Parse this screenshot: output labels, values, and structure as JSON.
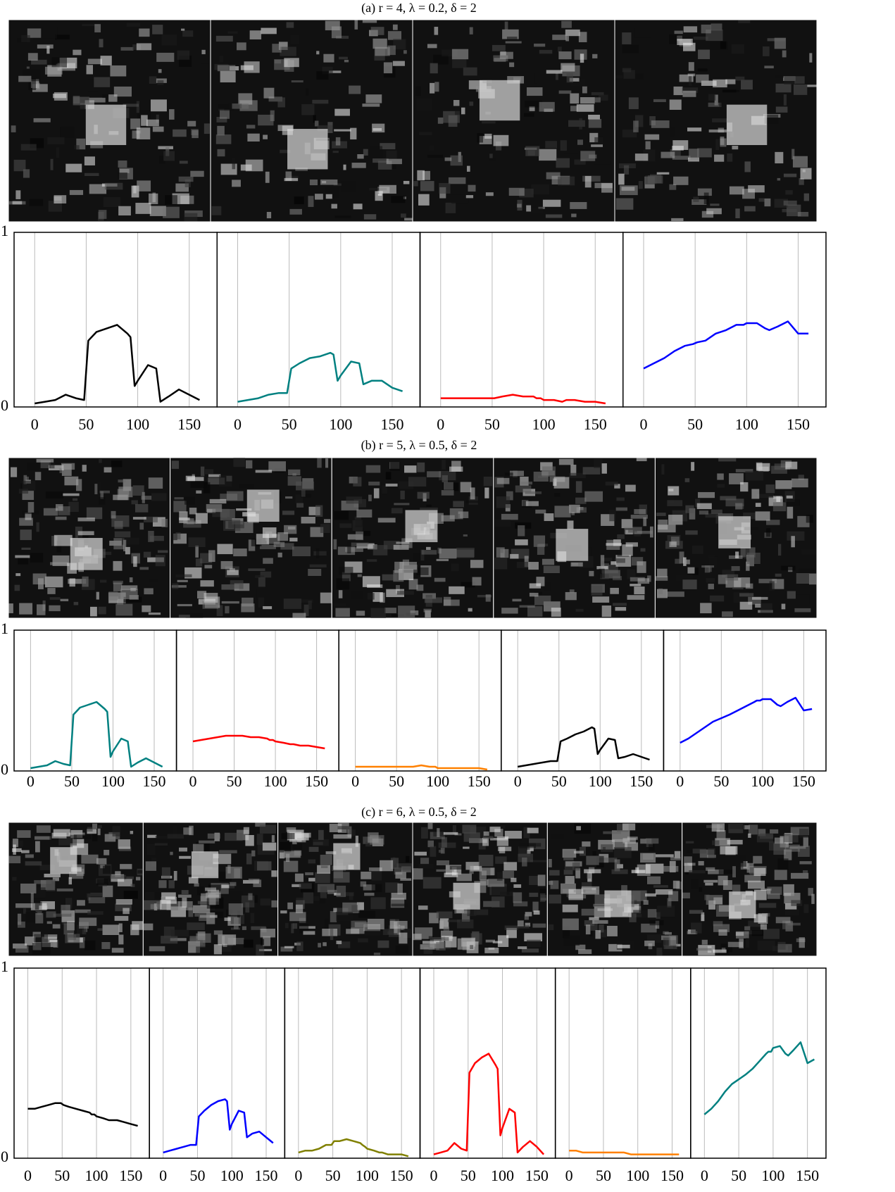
{
  "chart_data": [
    {
      "type": "line",
      "title": "(a) r = 4, λ = 0.2, δ = 2",
      "x": [
        0,
        10,
        20,
        30,
        40,
        48,
        52,
        60,
        70,
        80,
        90,
        93,
        97,
        100,
        110,
        118,
        122,
        130,
        140,
        150,
        160
      ],
      "xlim": [
        -20,
        177
      ],
      "ylim": [
        0,
        1
      ],
      "xticks": [
        0,
        50,
        100,
        150
      ],
      "yticks": [
        0,
        1
      ],
      "grid": true,
      "series": [
        {
          "color": "#000000",
          "values": [
            0.02,
            0.03,
            0.04,
            0.07,
            0.05,
            0.04,
            0.38,
            0.43,
            0.45,
            0.47,
            0.42,
            0.4,
            0.12,
            0.15,
            0.24,
            0.22,
            0.03,
            0.06,
            0.1,
            0.07,
            0.04
          ]
        },
        {
          "color": "#008080",
          "values": [
            0.03,
            0.04,
            0.05,
            0.07,
            0.08,
            0.08,
            0.22,
            0.25,
            0.28,
            0.29,
            0.31,
            0.3,
            0.15,
            0.18,
            0.26,
            0.25,
            0.13,
            0.15,
            0.15,
            0.11,
            0.09
          ]
        },
        {
          "color": "#ff0000",
          "values": [
            0.05,
            0.05,
            0.05,
            0.05,
            0.05,
            0.05,
            0.05,
            0.06,
            0.07,
            0.06,
            0.06,
            0.05,
            0.05,
            0.04,
            0.04,
            0.03,
            0.04,
            0.04,
            0.03,
            0.03,
            0.02
          ]
        },
        {
          "color": "#0000ff",
          "values": [
            0.22,
            0.25,
            0.28,
            0.32,
            0.35,
            0.36,
            0.37,
            0.38,
            0.42,
            0.44,
            0.47,
            0.47,
            0.47,
            0.48,
            0.48,
            0.45,
            0.44,
            0.46,
            0.49,
            0.42,
            0.42
          ]
        }
      ]
    },
    {
      "type": "line",
      "title": "(b) r = 5, λ = 0.5, δ = 2",
      "x": [
        0,
        10,
        20,
        30,
        40,
        48,
        52,
        60,
        70,
        80,
        90,
        93,
        97,
        100,
        110,
        118,
        122,
        130,
        140,
        150,
        160
      ],
      "xlim": [
        -20,
        177
      ],
      "ylim": [
        0,
        1
      ],
      "xticks": [
        0,
        50,
        100,
        150
      ],
      "yticks": [
        0,
        1
      ],
      "grid": true,
      "series": [
        {
          "color": "#008080",
          "values": [
            0.02,
            0.03,
            0.04,
            0.07,
            0.05,
            0.04,
            0.4,
            0.45,
            0.47,
            0.49,
            0.44,
            0.42,
            0.1,
            0.14,
            0.23,
            0.21,
            0.03,
            0.06,
            0.09,
            0.06,
            0.03
          ]
        },
        {
          "color": "#ff0000",
          "values": [
            0.21,
            0.22,
            0.23,
            0.24,
            0.25,
            0.25,
            0.25,
            0.25,
            0.24,
            0.24,
            0.23,
            0.22,
            0.22,
            0.21,
            0.2,
            0.19,
            0.19,
            0.18,
            0.18,
            0.17,
            0.16
          ]
        },
        {
          "color": "#ff8000",
          "values": [
            0.03,
            0.03,
            0.03,
            0.03,
            0.03,
            0.03,
            0.03,
            0.03,
            0.03,
            0.04,
            0.03,
            0.03,
            0.03,
            0.02,
            0.02,
            0.02,
            0.02,
            0.02,
            0.02,
            0.02,
            0.01
          ]
        },
        {
          "color": "#000000",
          "values": [
            0.03,
            0.04,
            0.05,
            0.06,
            0.07,
            0.07,
            0.21,
            0.23,
            0.26,
            0.28,
            0.31,
            0.3,
            0.12,
            0.15,
            0.23,
            0.22,
            0.09,
            0.1,
            0.12,
            0.1,
            0.08
          ]
        },
        {
          "color": "#0000ff",
          "values": [
            0.2,
            0.23,
            0.27,
            0.31,
            0.35,
            0.37,
            0.38,
            0.4,
            0.43,
            0.46,
            0.49,
            0.5,
            0.5,
            0.51,
            0.51,
            0.47,
            0.46,
            0.49,
            0.52,
            0.43,
            0.44
          ]
        }
      ]
    },
    {
      "type": "line",
      "title": "(c) r = 6, λ = 0.5, δ = 2",
      "x": [
        0,
        10,
        20,
        30,
        40,
        48,
        52,
        60,
        70,
        80,
        90,
        93,
        97,
        100,
        110,
        118,
        122,
        130,
        140,
        150,
        160
      ],
      "xlim": [
        -20,
        177
      ],
      "ylim": [
        0,
        1
      ],
      "xticks": [
        0,
        50,
        100,
        150
      ],
      "yticks": [
        0,
        1
      ],
      "grid": true,
      "series": [
        {
          "color": "#000000",
          "values": [
            0.26,
            0.26,
            0.27,
            0.28,
            0.29,
            0.29,
            0.28,
            0.27,
            0.26,
            0.25,
            0.24,
            0.23,
            0.23,
            0.22,
            0.21,
            0.2,
            0.2,
            0.2,
            0.19,
            0.18,
            0.17
          ]
        },
        {
          "color": "#0000ff",
          "values": [
            0.03,
            0.04,
            0.05,
            0.06,
            0.07,
            0.07,
            0.22,
            0.25,
            0.28,
            0.3,
            0.31,
            0.3,
            0.15,
            0.18,
            0.25,
            0.24,
            0.11,
            0.13,
            0.14,
            0.11,
            0.08
          ]
        },
        {
          "color": "#808000",
          "values": [
            0.03,
            0.04,
            0.04,
            0.05,
            0.07,
            0.07,
            0.09,
            0.09,
            0.1,
            0.09,
            0.08,
            0.07,
            0.06,
            0.05,
            0.04,
            0.03,
            0.03,
            0.02,
            0.02,
            0.02,
            0.01
          ]
        },
        {
          "color": "#ff0000",
          "values": [
            0.02,
            0.03,
            0.04,
            0.08,
            0.05,
            0.04,
            0.45,
            0.5,
            0.53,
            0.55,
            0.49,
            0.47,
            0.12,
            0.16,
            0.26,
            0.24,
            0.03,
            0.06,
            0.09,
            0.06,
            0.02
          ]
        },
        {
          "color": "#ff8000",
          "values": [
            0.04,
            0.04,
            0.03,
            0.03,
            0.03,
            0.03,
            0.03,
            0.03,
            0.03,
            0.03,
            0.02,
            0.02,
            0.02,
            0.02,
            0.02,
            0.02,
            0.02,
            0.02,
            0.02,
            0.02,
            0.02
          ]
        },
        {
          "color": "#008080",
          "values": [
            0.23,
            0.26,
            0.3,
            0.35,
            0.39,
            0.41,
            0.42,
            0.44,
            0.47,
            0.51,
            0.55,
            0.56,
            0.56,
            0.58,
            0.59,
            0.55,
            0.54,
            0.57,
            0.61,
            0.5,
            0.52
          ]
        }
      ]
    }
  ]
}
